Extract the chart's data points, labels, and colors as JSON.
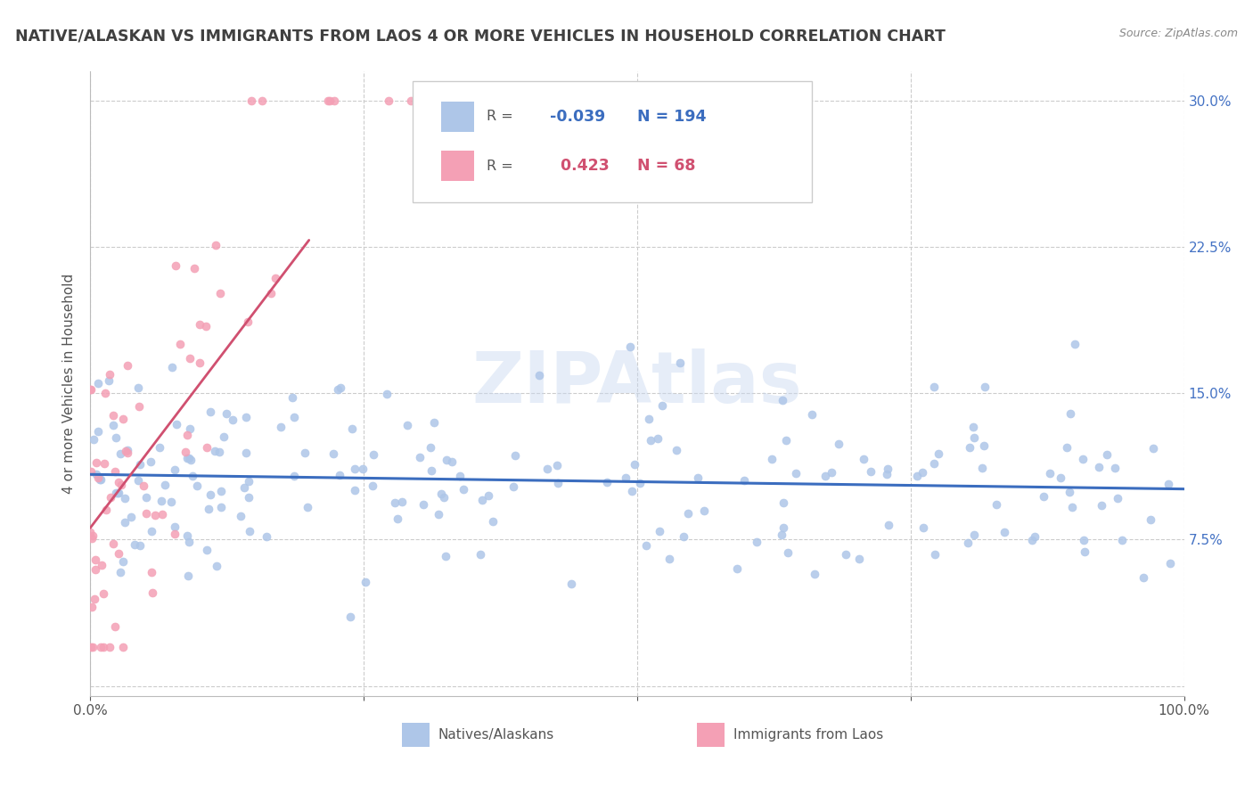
{
  "title": "NATIVE/ALASKAN VS IMMIGRANTS FROM LAOS 4 OR MORE VEHICLES IN HOUSEHOLD CORRELATION CHART",
  "source": "Source: ZipAtlas.com",
  "ylabel": "4 or more Vehicles in Household",
  "xlim": [
    0,
    1.0
  ],
  "ylim": [
    -0.005,
    0.315
  ],
  "native_R": -0.039,
  "native_N": 194,
  "laos_R": 0.423,
  "laos_N": 68,
  "native_color": "#aec6e8",
  "laos_color": "#f4a0b5",
  "native_line_color": "#3b6dbf",
  "laos_line_color": "#d05070",
  "legend_native_label": "Natives/Alaskans",
  "legend_laos_label": "Immigrants from Laos",
  "background_color": "#ffffff",
  "grid_color": "#cccccc",
  "title_color": "#404040",
  "ytick_color": "#4472c4",
  "xtick_labels": [
    "0.0%",
    "",
    "",
    "",
    "100.0%"
  ],
  "ytick_labels": [
    "",
    "7.5%",
    "15.0%",
    "22.5%",
    "30.0%"
  ],
  "ytick_values": [
    0.0,
    0.075,
    0.15,
    0.225,
    0.3
  ]
}
